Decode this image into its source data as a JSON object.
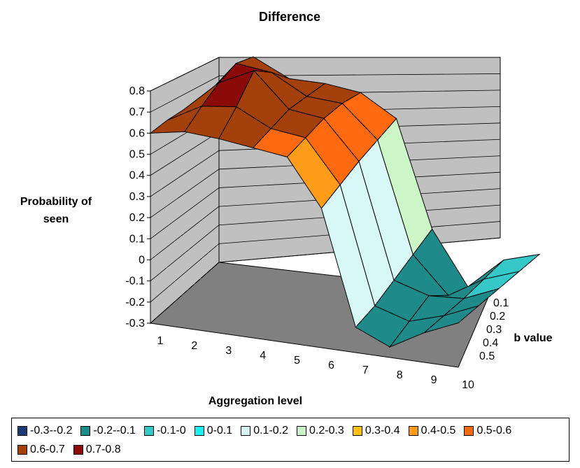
{
  "chart_data": {
    "type": "surface",
    "title": "Difference",
    "xlabel": "Aggregation level",
    "ylabel": "b value",
    "zlabel": [
      "Probability of",
      "seen"
    ],
    "x_categories": [
      "1",
      "2",
      "3",
      "4",
      "5",
      "6",
      "7",
      "8",
      "9",
      "10"
    ],
    "y_categories": [
      "0.1",
      "0.2",
      "0.3",
      "0.4",
      "0.5"
    ],
    "z_ticks": [
      "0.8",
      "0.7",
      "0.6",
      "0.5",
      "0.4",
      "0.3",
      "0.2",
      "0.1",
      "0",
      "-0.1",
      "-0.2",
      "-0.3"
    ],
    "zlim": [
      -0.3,
      0.8
    ],
    "legend": [
      {
        "label": "-0.3--0.2",
        "color": "#1f3a78"
      },
      {
        "label": "-0.2--0.1",
        "color": "#1e8a8a"
      },
      {
        "label": "-0.1-0",
        "color": "#36c8c8"
      },
      {
        "label": "0-0.1",
        "color": "#19f0f0"
      },
      {
        "label": "0.1-0.2",
        "color": "#d8f8f8"
      },
      {
        "label": "0.2-0.3",
        "color": "#ccf5c8"
      },
      {
        "label": "0.3-0.4",
        "color": "#ffc20e"
      },
      {
        "label": "0.4-0.5",
        "color": "#ff9d1a"
      },
      {
        "label": "0.5-0.6",
        "color": "#ff6a10"
      },
      {
        "label": "0.6-0.7",
        "color": "#a3400c"
      },
      {
        "label": "0.7-0.8",
        "color": "#8b0a0a"
      }
    ],
    "values": [
      [
        0.5,
        0.54,
        0.57,
        0.59,
        0.6
      ],
      [
        0.7,
        0.74,
        0.72,
        0.68,
        0.63
      ],
      [
        0.62,
        0.72,
        0.8,
        0.7,
        0.62
      ],
      [
        0.62,
        0.63,
        0.64,
        0.62,
        0.6
      ],
      [
        0.6,
        0.62,
        0.62,
        0.6,
        0.58
      ],
      [
        0.5,
        0.47,
        0.44,
        0.4,
        0.36
      ],
      [
        0.0,
        -0.05,
        -0.1,
        -0.15,
        -0.18
      ],
      [
        -0.25,
        -0.22,
        -0.15,
        -0.2,
        -0.25
      ],
      [
        -0.1,
        -0.12,
        -0.14,
        -0.15,
        -0.16
      ],
      [
        -0.05,
        -0.06,
        -0.07,
        -0.08,
        -0.09
      ]
    ]
  }
}
